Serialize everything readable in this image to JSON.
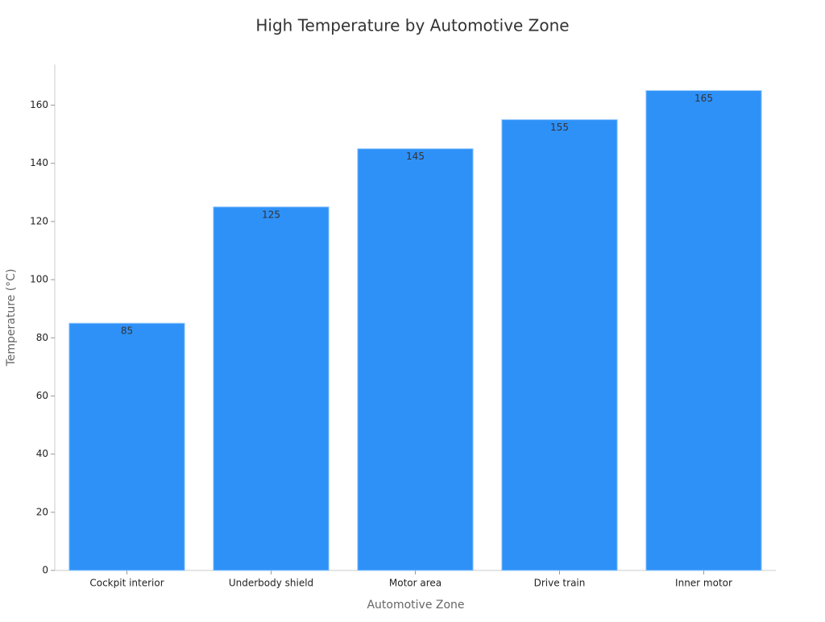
{
  "chart_data": {
    "type": "bar",
    "title": "High Temperature by Automotive Zone",
    "x_label": "Automotive Zone",
    "y_label": "Temperature (°C)",
    "categories": [
      "Cockpit interior",
      "Underbody shield",
      "Motor area",
      "Drive train",
      "Inner motor"
    ],
    "values": [
      85,
      125,
      145,
      155,
      165
    ],
    "color": "#2e91f8",
    "ylim": [
      0,
      174
    ],
    "yticks": [
      0,
      20,
      40,
      60,
      80,
      100,
      120,
      140,
      160
    ],
    "grid": false
  }
}
